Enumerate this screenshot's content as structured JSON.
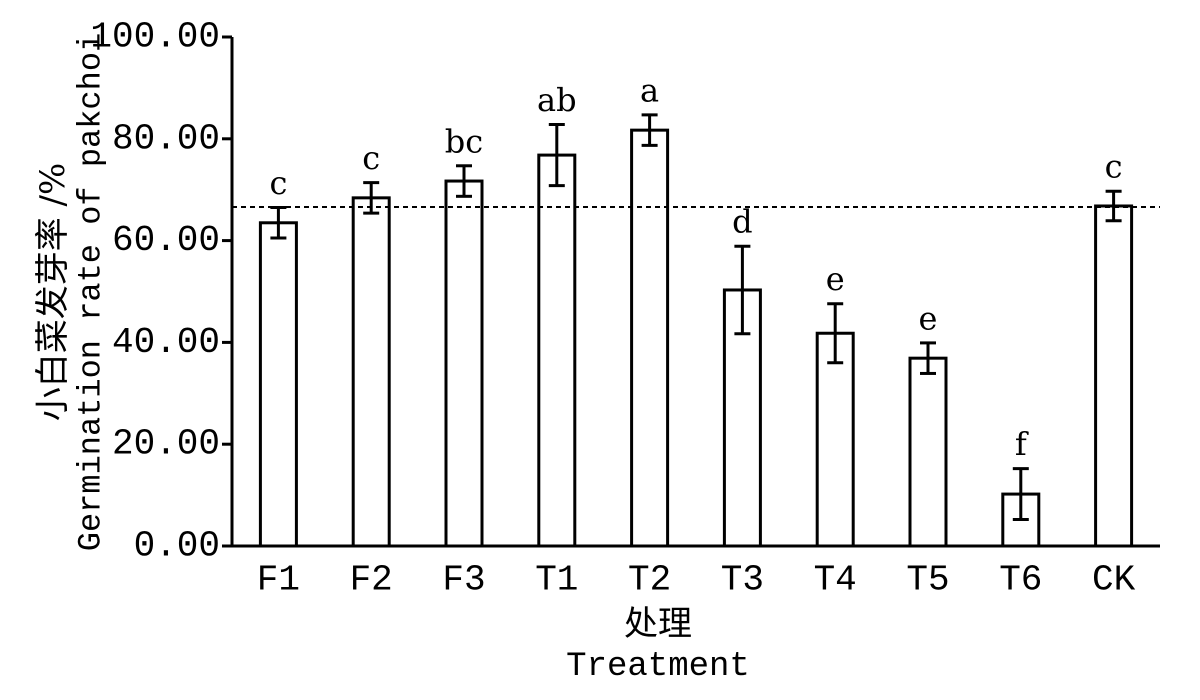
{
  "chart_data": {
    "type": "bar",
    "y_label": [
      "小白菜发芽率 /%",
      "Germination rate of pakchoi"
    ],
    "x_label": [
      "处理",
      "Treatment"
    ],
    "categories": [
      "F1",
      "F2",
      "F3",
      "T1",
      "T2",
      "T3",
      "T4",
      "T5",
      "T6",
      "CK"
    ],
    "values": [
      63.5,
      68.4,
      71.7,
      76.8,
      81.7,
      50.3,
      41.8,
      36.9,
      10.2,
      66.8
    ],
    "errors": [
      3.0,
      3.0,
      3.0,
      6.0,
      3.0,
      8.6,
      5.8,
      3.0,
      5.0,
      2.9
    ],
    "significance_letters": [
      "c",
      "c",
      "bc",
      "ab",
      "a",
      "d",
      "e",
      "e",
      "f",
      "c"
    ],
    "reference_line": 66.6,
    "color": "#ffffff",
    "ylim": [
      0,
      100
    ],
    "yticks": [
      {
        "value": 0,
        "label": "0.00"
      },
      {
        "value": 20,
        "label": "20.00"
      },
      {
        "value": 40,
        "label": "40.00"
      },
      {
        "value": 60,
        "label": "60.00"
      },
      {
        "value": 80,
        "label": "80.00"
      },
      {
        "value": 100,
        "label": "100.00"
      }
    ]
  }
}
